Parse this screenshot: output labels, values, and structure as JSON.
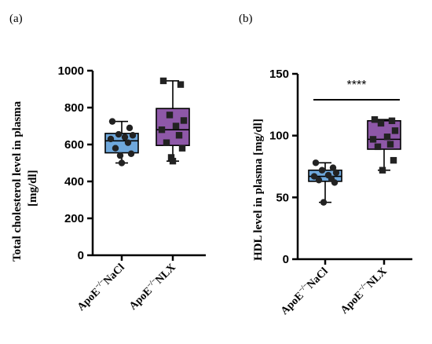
{
  "panels": [
    {
      "tag": "(a)",
      "ylabel_line1": "Total cholesterol level in plasma",
      "ylabel_line2": "[mg/dl]",
      "ticks": [
        "0",
        "200",
        "400",
        "600",
        "800",
        "1000"
      ],
      "categories": [
        "ApoE",
        "ApoE"
      ],
      "category_suffix": [
        "NaCl",
        "NLX"
      ],
      "superscript": "−/−",
      "significance": ""
    },
    {
      "tag": "(b)",
      "ylabel_line1": "HDL level in plasma [mg/dl]",
      "ylabel_line2": "",
      "ticks": [
        "0",
        "50",
        "100",
        "150"
      ],
      "categories": [
        "ApoE",
        "ApoE"
      ],
      "category_suffix": [
        "NaCl",
        "NLX"
      ],
      "superscript": "−/−",
      "significance": "****"
    }
  ],
  "colors": {
    "nacl_fill": "#6fa8dc",
    "nlx_fill": "#8e58a8",
    "axis": "#000000",
    "points_nacl": "#222222",
    "points_nlx": "#222222"
  },
  "chart_data": [
    {
      "type": "box",
      "ylim": [
        0,
        1000
      ],
      "ylabel": "Total cholesterol level in plasma [mg/dl]",
      "categories": [
        "ApoE−/− NaCl",
        "ApoE−/− NLX"
      ],
      "series": [
        {
          "box": {
            "min": 500,
            "q1": 555,
            "median": 620,
            "q3": 660,
            "max": 725
          },
          "points": [
            725,
            690,
            655,
            650,
            640,
            630,
            610,
            580,
            550,
            540,
            500
          ]
        },
        {
          "box": {
            "min": 510,
            "q1": 595,
            "median": 680,
            "q3": 795,
            "max": 945
          },
          "points": [
            945,
            925,
            760,
            730,
            700,
            680,
            650,
            610,
            580,
            530,
            510
          ]
        }
      ]
    },
    {
      "type": "box",
      "ylim": [
        0,
        150
      ],
      "ylabel": "HDL level in plasma [mg/dl]",
      "categories": [
        "ApoE−/− NaCl",
        "ApoE−/− NLX"
      ],
      "series": [
        {
          "box": {
            "min": 46,
            "q1": 63,
            "median": 67,
            "q3": 72,
            "max": 78
          },
          "points": [
            78,
            74,
            72,
            70,
            68,
            67,
            65,
            64,
            62,
            46
          ]
        },
        {
          "box": {
            "min": 72,
            "q1": 89,
            "median": 97,
            "q3": 112,
            "max": 113
          },
          "points": [
            113,
            112,
            110,
            104,
            99,
            97,
            93,
            91,
            80,
            72
          ]
        }
      ],
      "annotation": "****"
    }
  ]
}
